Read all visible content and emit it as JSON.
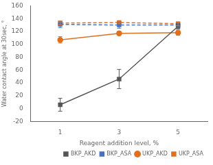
{
  "chart_data": {
    "type": "line",
    "xlabel": "Reagent addition level, %",
    "ylabel": "Water contact angle at 30sec, °",
    "x": [
      1,
      3,
      5
    ],
    "series": [
      {
        "name": "BKP_AKD",
        "color": "#555555",
        "values": [
          6,
          46,
          128
        ],
        "errors": [
          10,
          15,
          4
        ],
        "marker": "square",
        "line_style": "solid"
      },
      {
        "name": "BKP_ASA",
        "color": "#4472c4",
        "values": [
          131,
          130,
          130
        ],
        "errors": [
          5,
          5,
          3
        ],
        "marker": "square",
        "line_style": "dashed"
      },
      {
        "name": "UKP_AKD",
        "color": "#e07020",
        "values": [
          107,
          117,
          118
        ],
        "errors": [
          5,
          3,
          4
        ],
        "marker": "circle",
        "line_style": "solid"
      },
      {
        "name": "UKP_ASA",
        "color": "#e07020",
        "values": [
          133,
          134,
          132
        ],
        "errors": [
          3,
          2,
          3
        ],
        "marker": "square",
        "line_style": "dashed"
      }
    ],
    "xlim": [
      0,
      6
    ],
    "xticks": [
      1,
      3,
      5
    ],
    "ylim": [
      -20,
      160
    ],
    "yticks": [
      -20,
      0,
      20,
      40,
      60,
      80,
      100,
      120,
      140,
      160
    ],
    "grid": false,
    "legend": "lower right"
  }
}
